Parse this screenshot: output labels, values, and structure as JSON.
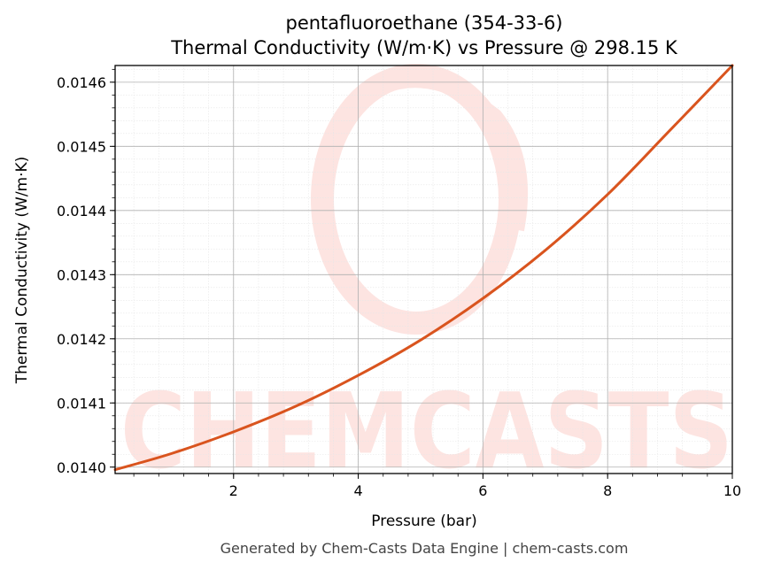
{
  "chart_data": {
    "type": "line",
    "title": "pentafluoroethane (354-33-6)",
    "subtitle": "Thermal Conductivity (W/m·K) vs Pressure @ 298.15 K",
    "xlabel": "Pressure (bar)",
    "ylabel": "Thermal Conductivity (W/m·K)",
    "xlim": [
      0.1,
      10
    ],
    "ylim": [
      0.01399,
      0.014626
    ],
    "x_ticks": [
      2,
      4,
      6,
      8,
      10
    ],
    "x_tick_labels": [
      "2",
      "4",
      "6",
      "8",
      "10"
    ],
    "y_ticks": [
      0.014,
      0.0141,
      0.0142,
      0.0143,
      0.0144,
      0.0145,
      0.0146
    ],
    "y_tick_labels": [
      "0.0140",
      "0.0141",
      "0.0142",
      "0.0143",
      "0.0144",
      "0.0145",
      "0.0146"
    ],
    "grid": true,
    "line_color": "#d9541e",
    "series": [
      {
        "x": [
          0.1,
          1,
          2,
          3,
          4,
          5,
          6,
          7,
          8,
          9,
          10
        ],
        "y": [
          0.013996,
          0.014021,
          0.014055,
          0.014095,
          0.014143,
          0.014198,
          0.014263,
          0.014338,
          0.014425,
          0.014525,
          0.014626
        ]
      }
    ]
  },
  "watermark": "CHEMCASTS",
  "footer": "Generated by Chem-Casts Data Engine | chem-casts.com"
}
